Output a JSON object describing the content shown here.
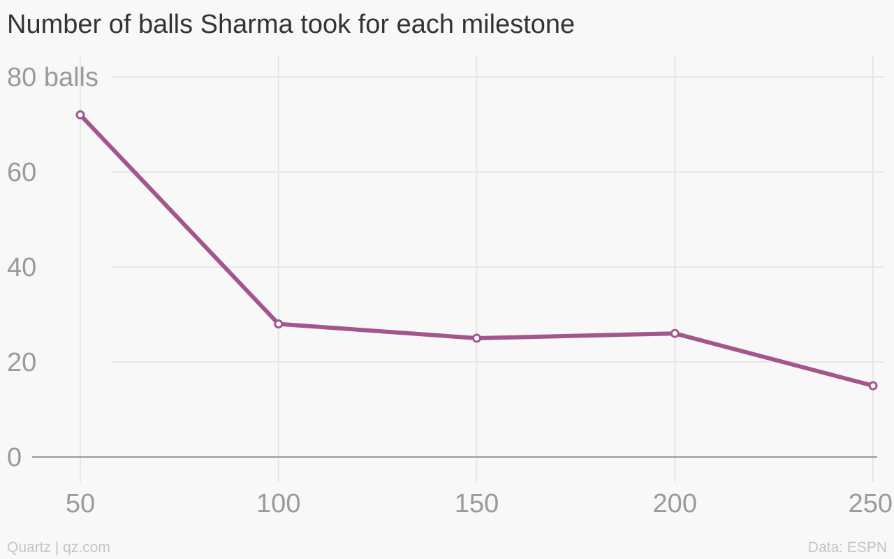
{
  "chart": {
    "title": "Number of balls Sharma took for each milestone",
    "footer_left": "Quartz | qz.com",
    "footer_right": "Data: ESPN"
  },
  "colors": {
    "line": "#a3568a",
    "grid": "#e6e6e6",
    "zero_line": "#9a9a9a",
    "tick_text": "#9a9a9a",
    "background": "#f8f8f8"
  },
  "chart_data": {
    "type": "line",
    "title": "Number of balls Sharma took for each milestone",
    "xlabel": "",
    "ylabel": "",
    "x": [
      50,
      100,
      150,
      200,
      250
    ],
    "y": [
      72,
      28,
      25,
      26,
      15
    ],
    "xlim": [
      50,
      250
    ],
    "ylim": [
      0,
      80
    ],
    "x_ticks": [
      50,
      100,
      150,
      200,
      250
    ],
    "x_tick_labels": [
      "50",
      "100",
      "150",
      "200",
      "250"
    ],
    "y_ticks": [
      0,
      20,
      40,
      60,
      80
    ],
    "y_tick_labels": [
      "0",
      "20",
      "40",
      "60",
      "80 balls"
    ],
    "grid": true,
    "legend": "none"
  }
}
